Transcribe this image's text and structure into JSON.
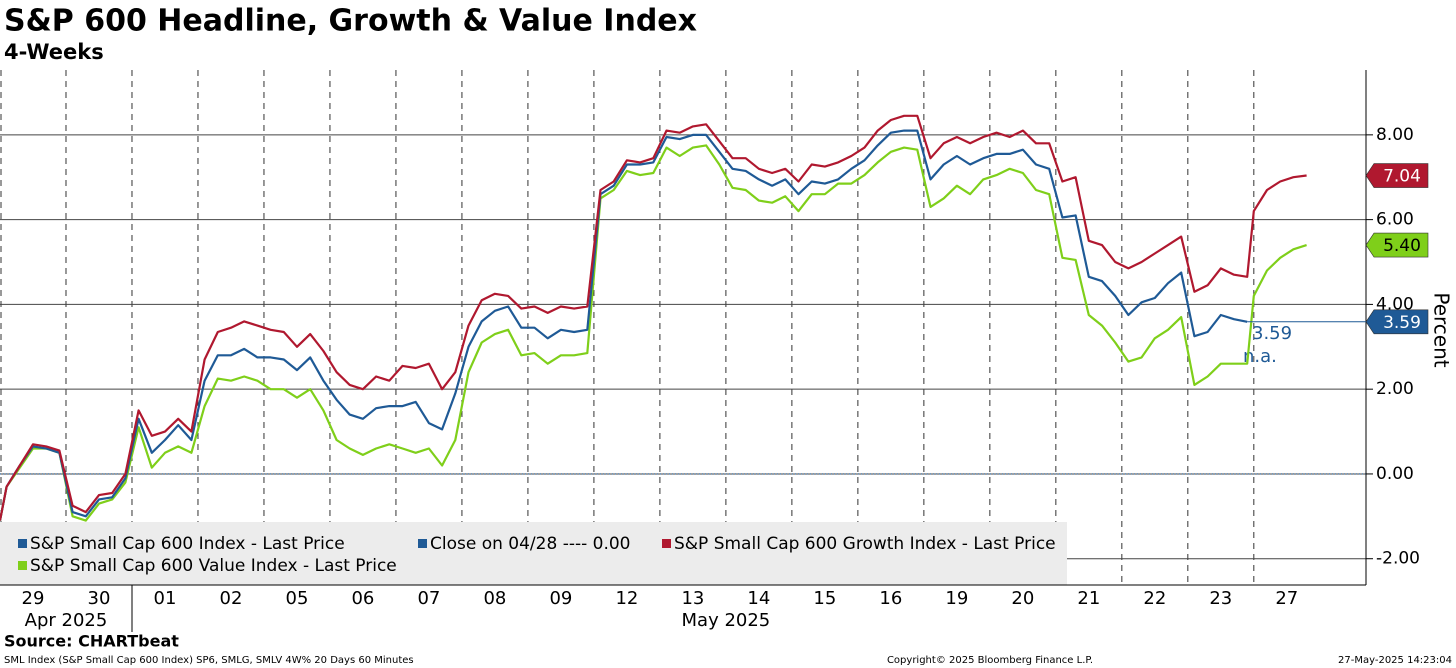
{
  "chart_data": {
    "type": "line",
    "title": "S&P 600 Headline, Growth & Value Index",
    "subtitle": "4-Weeks",
    "y_label": "Percent",
    "source": "Source: CHARTbeat",
    "footer_left": "SML Index (S&P Small Cap 600 Index) SP6, SMLG, SMLV 4W% 20 Days 60 Minutes",
    "footer_center": "Copyright© 2025 Bloomberg Finance L.P.",
    "footer_right": "27-May-2025 14:23:04",
    "xlim": [
      0,
      20.7
    ],
    "ylim": [
      -2.62,
      9.53
    ],
    "yticks": [
      {
        "value": 8,
        "label": "8.00"
      },
      {
        "value": 6,
        "label": "6.00"
      },
      {
        "value": 4,
        "label": "4.00"
      },
      {
        "value": 2,
        "label": "2.00"
      },
      {
        "value": 0,
        "label": "0.00"
      },
      {
        "value": -2,
        "label": "-2.00"
      }
    ],
    "xticks": [
      {
        "value": 0.5,
        "label": "29"
      },
      {
        "value": 1.5,
        "label": "30"
      },
      {
        "value": 2.5,
        "label": "01"
      },
      {
        "value": 3.5,
        "label": "02"
      },
      {
        "value": 4.5,
        "label": "05"
      },
      {
        "value": 5.5,
        "label": "06"
      },
      {
        "value": 6.5,
        "label": "07"
      },
      {
        "value": 7.5,
        "label": "08"
      },
      {
        "value": 8.5,
        "label": "09"
      },
      {
        "value": 9.5,
        "label": "12"
      },
      {
        "value": 10.5,
        "label": "13"
      },
      {
        "value": 11.5,
        "label": "14"
      },
      {
        "value": 12.5,
        "label": "15"
      },
      {
        "value": 13.5,
        "label": "16"
      },
      {
        "value": 14.5,
        "label": "19"
      },
      {
        "value": 15.5,
        "label": "20"
      },
      {
        "value": 16.5,
        "label": "21"
      },
      {
        "value": 17.5,
        "label": "22"
      },
      {
        "value": 18.5,
        "label": "23"
      },
      {
        "value": 19.5,
        "label": "27"
      }
    ],
    "month_labels": [
      {
        "value": 1,
        "label": "Apr 2025"
      },
      {
        "value": 11,
        "label": "May 2025"
      }
    ],
    "x": [
      0,
      0.1,
      0.3,
      0.5,
      0.7,
      0.9,
      1.1,
      1.3,
      1.5,
      1.7,
      1.9,
      2.1,
      2.3,
      2.5,
      2.7,
      2.9,
      3.1,
      3.3,
      3.5,
      3.7,
      3.9,
      4.1,
      4.3,
      4.5,
      4.7,
      4.9,
      5.1,
      5.3,
      5.5,
      5.7,
      5.9,
      6.1,
      6.3,
      6.5,
      6.7,
      6.9,
      7.1,
      7.3,
      7.5,
      7.7,
      7.9,
      8.1,
      8.3,
      8.5,
      8.7,
      8.9,
      9.1,
      9.3,
      9.5,
      9.7,
      9.9,
      10.1,
      10.3,
      10.5,
      10.7,
      10.9,
      11.1,
      11.3,
      11.5,
      11.7,
      11.9,
      12.1,
      12.3,
      12.5,
      12.7,
      12.9,
      13.1,
      13.3,
      13.5,
      13.7,
      13.9,
      14.1,
      14.3,
      14.5,
      14.7,
      14.9,
      15.1,
      15.3,
      15.5,
      15.7,
      15.9,
      16.1,
      16.3,
      16.5,
      16.7,
      16.9,
      17.1,
      17.3,
      17.5,
      17.7,
      17.9,
      18.1,
      18.3,
      18.5,
      18.7,
      18.9,
      19.0,
      19.2,
      19.4,
      19.6,
      19.8
    ],
    "series": [
      {
        "name": "S&P Small Cap 600 Index - Last Price",
        "color": "#1f5a96",
        "last_label": "3.59",
        "values": [
          -1.1,
          -0.3,
          0.2,
          0.65,
          0.6,
          0.5,
          -0.9,
          -1.0,
          -0.6,
          -0.55,
          -0.1,
          1.3,
          0.5,
          0.8,
          1.15,
          0.8,
          2.2,
          2.8,
          2.8,
          2.95,
          2.75,
          2.75,
          2.7,
          2.45,
          2.75,
          2.2,
          1.75,
          1.4,
          1.3,
          1.55,
          1.6,
          1.6,
          1.7,
          1.2,
          1.05,
          1.9,
          3.0,
          3.6,
          3.85,
          3.95,
          3.45,
          3.45,
          3.2,
          3.4,
          3.35,
          3.4,
          6.6,
          6.8,
          7.3,
          7.3,
          7.35,
          7.95,
          7.9,
          8.0,
          8.0,
          7.6,
          7.2,
          7.15,
          6.95,
          6.8,
          6.95,
          6.6,
          6.9,
          6.85,
          6.95,
          7.2,
          7.4,
          7.75,
          8.05,
          8.1,
          8.1,
          6.95,
          7.3,
          7.5,
          7.3,
          7.45,
          7.55,
          7.55,
          7.65,
          7.3,
          7.2,
          6.05,
          6.1,
          4.65,
          4.55,
          4.2,
          3.75,
          4.05,
          4.15,
          4.5,
          4.75,
          3.25,
          3.35,
          3.75,
          3.65,
          3.59,
          null,
          null,
          null,
          null,
          null
        ]
      },
      {
        "name": "S&P Small Cap 600 Growth Index - Last Price",
        "color": "#b0182f",
        "last_label": "7.04",
        "values": [
          -1.1,
          -0.3,
          0.2,
          0.7,
          0.65,
          0.55,
          -0.75,
          -0.9,
          -0.5,
          -0.45,
          0.0,
          1.5,
          0.9,
          1.0,
          1.3,
          1.0,
          2.7,
          3.35,
          3.45,
          3.6,
          3.5,
          3.4,
          3.35,
          3.0,
          3.3,
          2.9,
          2.4,
          2.1,
          2.0,
          2.3,
          2.2,
          2.55,
          2.5,
          2.6,
          2.0,
          2.4,
          3.5,
          4.1,
          4.25,
          4.2,
          3.9,
          3.95,
          3.8,
          3.95,
          3.9,
          3.95,
          6.7,
          6.9,
          7.4,
          7.35,
          7.45,
          8.1,
          8.05,
          8.2,
          8.25,
          7.85,
          7.45,
          7.45,
          7.2,
          7.1,
          7.2,
          6.9,
          7.3,
          7.25,
          7.35,
          7.5,
          7.7,
          8.1,
          8.35,
          8.45,
          8.45,
          7.45,
          7.8,
          7.95,
          7.8,
          7.95,
          8.05,
          7.95,
          8.1,
          7.8,
          7.8,
          6.9,
          7.0,
          5.5,
          5.4,
          5.0,
          4.85,
          5.0,
          5.2,
          5.4,
          5.6,
          4.3,
          4.45,
          4.85,
          4.7,
          4.65,
          6.2,
          6.7,
          6.9,
          7.0,
          7.04
        ]
      },
      {
        "name": "S&P Small Cap 600 Value Index - Last Price",
        "color": "#7fcf1a",
        "last_label": "5.40",
        "values": [
          -1.1,
          -0.3,
          0.15,
          0.6,
          0.6,
          0.5,
          -1.0,
          -1.1,
          -0.7,
          -0.6,
          -0.2,
          1.1,
          0.15,
          0.5,
          0.65,
          0.5,
          1.6,
          2.25,
          2.2,
          2.3,
          2.2,
          2.0,
          2.0,
          1.8,
          2.0,
          1.5,
          0.8,
          0.6,
          0.45,
          0.6,
          0.7,
          0.6,
          0.5,
          0.6,
          0.2,
          0.8,
          2.4,
          3.1,
          3.3,
          3.4,
          2.8,
          2.85,
          2.6,
          2.8,
          2.8,
          2.85,
          6.5,
          6.7,
          7.15,
          7.05,
          7.1,
          7.7,
          7.5,
          7.7,
          7.75,
          7.3,
          6.75,
          6.7,
          6.45,
          6.4,
          6.55,
          6.2,
          6.6,
          6.6,
          6.85,
          6.85,
          7.05,
          7.35,
          7.6,
          7.7,
          7.65,
          6.3,
          6.5,
          6.8,
          6.6,
          6.95,
          7.05,
          7.2,
          7.1,
          6.7,
          6.6,
          5.1,
          5.05,
          3.75,
          3.5,
          3.1,
          2.65,
          2.75,
          3.2,
          3.4,
          3.7,
          2.1,
          2.3,
          2.6,
          2.6,
          2.6,
          4.2,
          4.8,
          5.1,
          5.3,
          5.4
        ]
      }
    ],
    "reference_line": {
      "name": "Close on 04/28 ---- 0.00",
      "color": "#1f5a96",
      "value": 0
    },
    "annotations": [
      "3.59",
      "n.a."
    ]
  }
}
